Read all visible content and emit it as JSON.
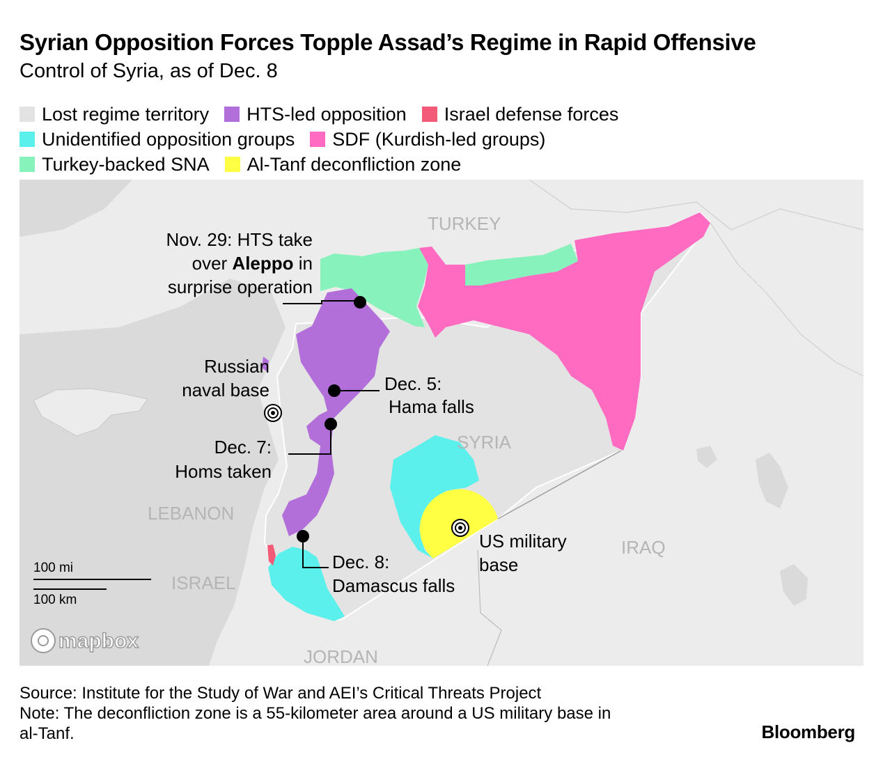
{
  "title": "Syrian Opposition Forces Topple Assad’s Regime in Rapid Offensive",
  "subtitle": "Control of Syria, as of Dec. 8",
  "legend": [
    [
      {
        "label": "Lost regime territory",
        "color": "#e3e3e3"
      },
      {
        "label": "HTS-led opposition",
        "color": "#b36fd9"
      },
      {
        "label": "Israel defense forces",
        "color": "#f25a78"
      }
    ],
    [
      {
        "label": "Unidentified opposition groups",
        "color": "#5cf0ec"
      },
      {
        "label": "SDF (Kurdish-led groups)",
        "color": "#ff6bc1"
      }
    ],
    [
      {
        "label": "Turkey-backed SNA",
        "color": "#88f2bd"
      },
      {
        "label": "Al-Tanf deconfliction zone",
        "color": "#ffff44"
      }
    ]
  ],
  "map": {
    "countries": {
      "turkey": "TURKEY",
      "syria": "SYRIA",
      "lebanon": "LEBANON",
      "israel": "ISRAEL",
      "iraq": "IRAQ",
      "jordan": "JORDAN"
    },
    "annotations": {
      "aleppo": {
        "pre": "Nov. 29: HTS take",
        "line2_pre": "over ",
        "line2_bold": "Aleppo",
        "line2_post": " in",
        "line3": "surprise operation"
      },
      "naval": {
        "line1": "Russian",
        "line2": "naval base"
      },
      "hama": {
        "line1": "Dec. 5:",
        "line2": "Hama falls"
      },
      "homs": {
        "line1": "Dec. 7:",
        "line2": "Homs taken"
      },
      "damascus": {
        "line1": "Dec. 8:",
        "line2": "Damascus falls"
      },
      "us_base": {
        "line1": "US military",
        "line2": "base"
      }
    },
    "scale": {
      "mi": "100 mi",
      "km": "100 km"
    },
    "attribution": "mapbox"
  },
  "footer": {
    "source": "Source: Institute for the Study of War and AEI’s Critical Threats Project",
    "note_line1": "Note: The deconfliction zone is a 55-kilometer area around a US military base in",
    "note_line2": "al-Tanf."
  },
  "brand": "Bloomberg"
}
